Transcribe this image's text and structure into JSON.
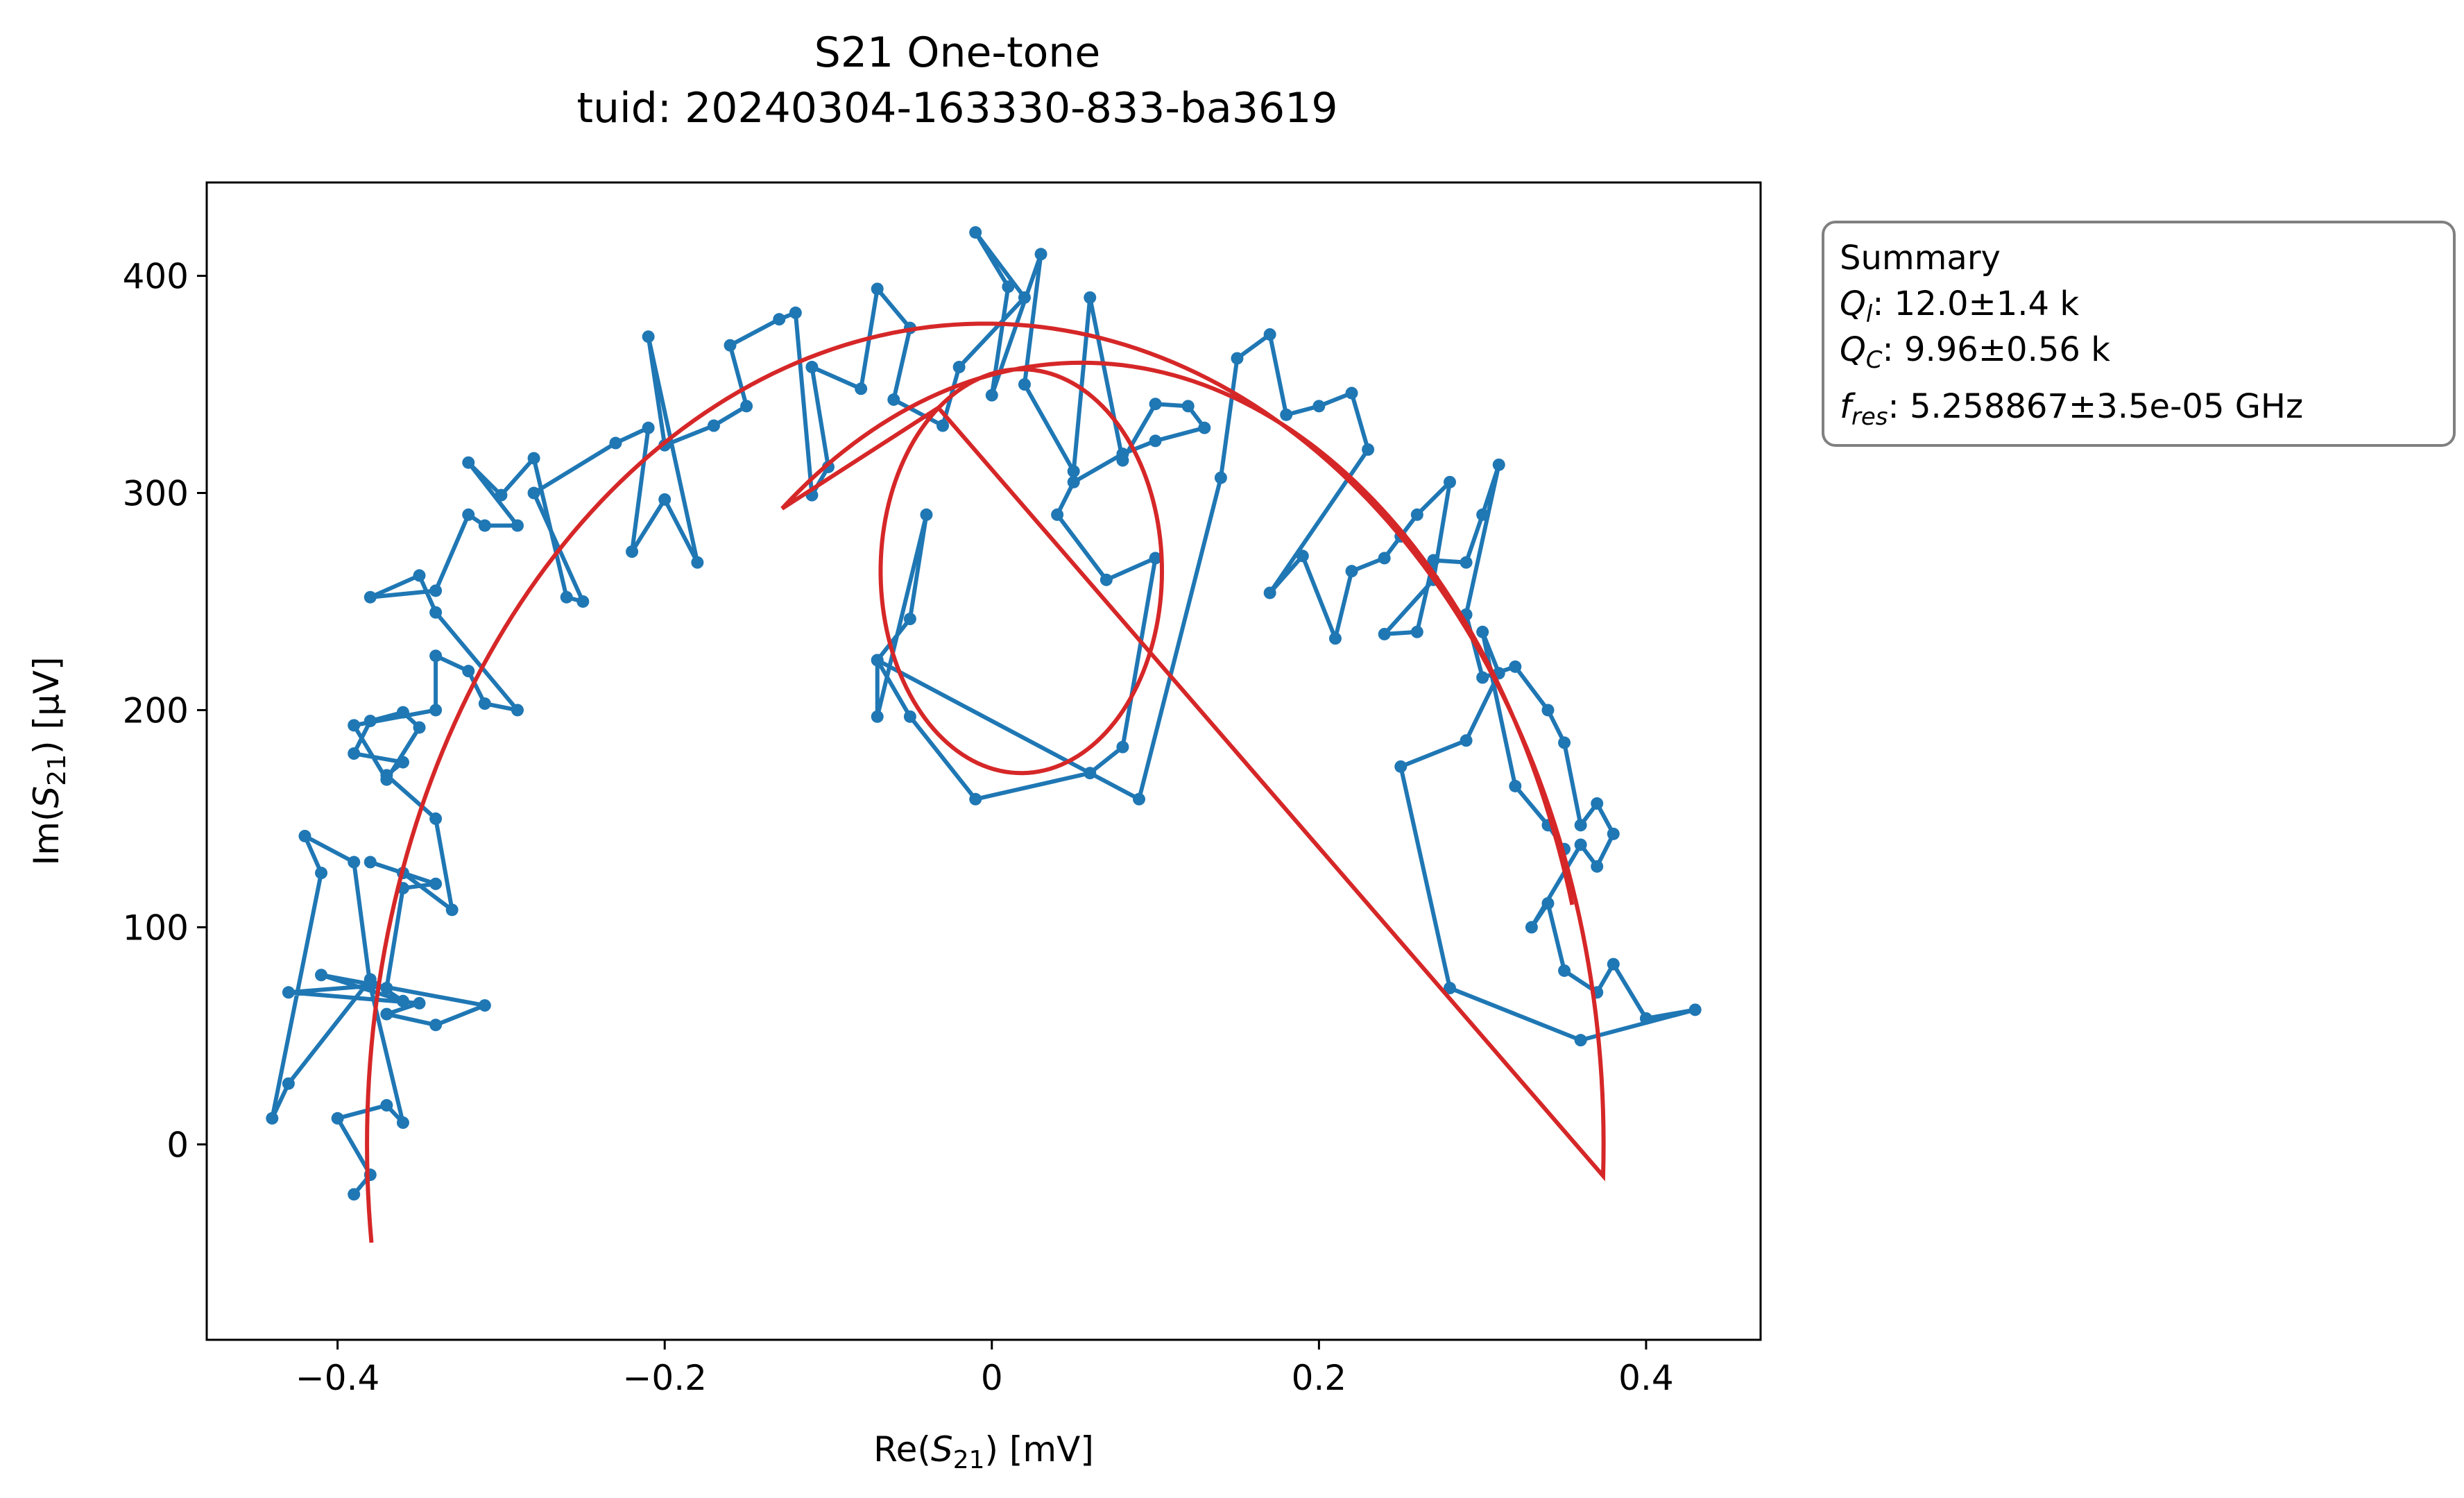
{
  "chart_data": {
    "type": "scatter",
    "title": "S21 One-tone",
    "subtitle": "tuid: 20240304-163330-833-ba3619",
    "xlabel": {
      "pre": "Re(",
      "var": "S",
      "sub": "21",
      "post": ") [mV]"
    },
    "ylabel": {
      "pre": "Im(",
      "var": "S",
      "sub": "21",
      "post": ") [µV]"
    },
    "xlim": [
      -0.48,
      0.47
    ],
    "ylim": [
      -90,
      443
    ],
    "xticks": [
      -0.4,
      -0.2,
      0,
      0.2,
      0.4
    ],
    "xtick_labels": [
      "−0.4",
      "−0.2",
      "0",
      "0.2",
      "0.4"
    ],
    "yticks": [
      0,
      100,
      200,
      300,
      400
    ],
    "ytick_labels": [
      "0",
      "100",
      "200",
      "300",
      "400"
    ],
    "grid": false,
    "series": [
      {
        "kind": "data",
        "color": "#1f77b4",
        "points": [
          [
            -0.39,
            -23
          ],
          [
            -0.38,
            -14
          ],
          [
            -0.4,
            12
          ],
          [
            -0.37,
            18
          ],
          [
            -0.36,
            10
          ],
          [
            -0.38,
            73
          ],
          [
            -0.43,
            70
          ],
          [
            -0.35,
            65
          ],
          [
            -0.37,
            60
          ],
          [
            -0.34,
            55
          ],
          [
            -0.31,
            64
          ],
          [
            -0.41,
            78
          ],
          [
            -0.36,
            66
          ],
          [
            -0.38,
            76
          ],
          [
            -0.43,
            28
          ],
          [
            -0.44,
            12
          ],
          [
            -0.41,
            125
          ],
          [
            -0.42,
            142
          ],
          [
            -0.39,
            130
          ],
          [
            -0.38,
            73
          ],
          [
            -0.37,
            72
          ],
          [
            -0.36,
            118
          ],
          [
            -0.34,
            120
          ],
          [
            -0.38,
            130
          ],
          [
            -0.36,
            125
          ],
          [
            -0.33,
            108
          ],
          [
            -0.34,
            150
          ],
          [
            -0.37,
            170
          ],
          [
            -0.36,
            176
          ],
          [
            -0.39,
            180
          ],
          [
            -0.38,
            195
          ],
          [
            -0.36,
            199
          ],
          [
            -0.35,
            192
          ],
          [
            -0.37,
            168
          ],
          [
            -0.39,
            193
          ],
          [
            -0.34,
            200
          ],
          [
            -0.34,
            225
          ],
          [
            -0.32,
            218
          ],
          [
            -0.31,
            203
          ],
          [
            -0.29,
            200
          ],
          [
            -0.34,
            245
          ],
          [
            -0.35,
            262
          ],
          [
            -0.38,
            252
          ],
          [
            -0.34,
            255
          ],
          [
            -0.32,
            290
          ],
          [
            -0.31,
            285
          ],
          [
            -0.29,
            285
          ],
          [
            -0.32,
            314
          ],
          [
            -0.3,
            299
          ],
          [
            -0.28,
            316
          ],
          [
            -0.26,
            252
          ],
          [
            -0.25,
            250
          ],
          [
            -0.28,
            300
          ],
          [
            -0.23,
            323
          ],
          [
            -0.21,
            330
          ],
          [
            -0.22,
            273
          ],
          [
            -0.2,
            297
          ],
          [
            -0.18,
            268
          ],
          [
            -0.21,
            372
          ],
          [
            -0.2,
            322
          ],
          [
            -0.17,
            331
          ],
          [
            -0.15,
            340
          ],
          [
            -0.16,
            368
          ],
          [
            -0.13,
            380
          ],
          [
            -0.12,
            383
          ],
          [
            -0.11,
            299
          ],
          [
            -0.1,
            312
          ],
          [
            -0.11,
            358
          ],
          [
            -0.08,
            348
          ],
          [
            -0.07,
            394
          ],
          [
            -0.05,
            376
          ],
          [
            -0.06,
            343
          ],
          [
            -0.03,
            331
          ],
          [
            -0.02,
            358
          ],
          [
            0.02,
            390
          ],
          [
            -0.01,
            420
          ],
          [
            0.01,
            395
          ],
          [
            0.0,
            345
          ],
          [
            0.03,
            410
          ],
          [
            0.02,
            350
          ],
          [
            0.05,
            310
          ],
          [
            0.06,
            390
          ],
          [
            0.08,
            315
          ],
          [
            0.1,
            341
          ],
          [
            0.12,
            340
          ],
          [
            0.13,
            330
          ],
          [
            0.1,
            324
          ],
          [
            0.08,
            318
          ],
          [
            0.05,
            305
          ],
          [
            0.04,
            290
          ],
          [
            0.07,
            260
          ],
          [
            0.1,
            270
          ],
          [
            0.08,
            183
          ],
          [
            0.06,
            171
          ],
          [
            -0.01,
            159
          ],
          [
            -0.05,
            197
          ],
          [
            -0.07,
            223
          ],
          [
            -0.05,
            242
          ],
          [
            -0.04,
            290
          ],
          [
            -0.07,
            197
          ],
          [
            -0.07,
            223
          ],
          [
            0.09,
            159
          ],
          [
            0.14,
            307
          ],
          [
            0.15,
            362
          ],
          [
            0.17,
            373
          ],
          [
            0.18,
            336
          ],
          [
            0.2,
            340
          ],
          [
            0.22,
            346
          ],
          [
            0.23,
            320
          ],
          [
            0.17,
            254
          ],
          [
            0.19,
            271
          ],
          [
            0.21,
            233
          ],
          [
            0.22,
            264
          ],
          [
            0.24,
            270
          ],
          [
            0.25,
            280
          ],
          [
            0.26,
            290
          ],
          [
            0.28,
            305
          ],
          [
            0.27,
            260
          ],
          [
            0.24,
            235
          ],
          [
            0.26,
            236
          ],
          [
            0.27,
            269
          ],
          [
            0.29,
            268
          ],
          [
            0.3,
            290
          ],
          [
            0.31,
            313
          ],
          [
            0.29,
            244
          ],
          [
            0.3,
            215
          ],
          [
            0.32,
            220
          ],
          [
            0.34,
            200
          ],
          [
            0.35,
            185
          ],
          [
            0.36,
            147
          ],
          [
            0.37,
            157
          ],
          [
            0.38,
            143
          ],
          [
            0.37,
            128
          ],
          [
            0.36,
            138
          ],
          [
            0.33,
            100
          ],
          [
            0.34,
            111
          ],
          [
            0.35,
            80
          ],
          [
            0.37,
            70
          ],
          [
            0.38,
            83
          ],
          [
            0.4,
            58
          ],
          [
            0.43,
            62
          ],
          [
            0.36,
            48
          ],
          [
            0.28,
            72
          ],
          [
            0.25,
            174
          ],
          [
            0.29,
            186
          ],
          [
            0.31,
            217
          ],
          [
            0.3,
            236
          ],
          [
            0.32,
            165
          ],
          [
            0.34,
            147
          ],
          [
            0.35,
            136
          ]
        ]
      },
      {
        "kind": "fit",
        "color": "#d62728"
      }
    ]
  },
  "legend_box": {
    "heading": "Summary",
    "rows": [
      {
        "sym": "Q",
        "sub": "l",
        "value": ": 12.0±1.4 k"
      },
      {
        "sym": "Q",
        "sub": "C",
        "value": ": 9.96±0.56 k"
      },
      {
        "sym": "f",
        "sub": "res",
        "value": ": 5.258867±3.5e-05 GHz"
      }
    ]
  }
}
